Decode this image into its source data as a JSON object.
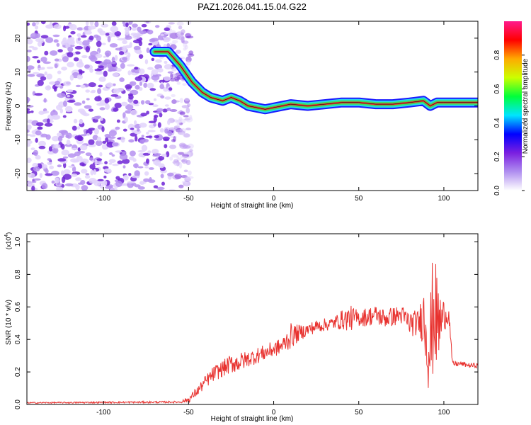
{
  "title": "PAZ1.2026.041.15.04.G22",
  "colors": {
    "snr_line": "#e8322f",
    "frame": "#000000",
    "track_core": "#e8322f",
    "track_mid": "#39e05a",
    "track_outer": "#27d8e8",
    "track_edge": "#1a1aff",
    "noise_dark": "#6f24d6",
    "noise_mid": "#b590f0",
    "noise_light": "#e2d4fb"
  },
  "chart_data": [
    {
      "type": "heatmap",
      "name": "spectrogram",
      "xlabel": "Height of straight line (km)",
      "ylabel": "Frequency (Hz)",
      "xlim": [
        -145,
        120
      ],
      "ylim": [
        -25,
        25
      ],
      "x_ticks": [
        -100,
        -50,
        0,
        50,
        100
      ],
      "x_tick_labels": [
        "-100",
        "-50",
        "0",
        "50",
        "100"
      ],
      "y_ticks": [
        -20,
        -10,
        0,
        10,
        20
      ],
      "y_tick_labels": [
        "-20",
        "-10",
        "0",
        "10",
        "20"
      ],
      "noise_region_x": [
        -145,
        -50
      ],
      "ridge": {
        "x": [
          -70,
          -62,
          -55,
          -48,
          -42,
          -37,
          -30,
          -25,
          -20,
          -15,
          -10,
          -5,
          0,
          5,
          10,
          20,
          30,
          40,
          50,
          60,
          70,
          80,
          88,
          92,
          96,
          100,
          110,
          120
        ],
        "freq": [
          16,
          16,
          12,
          7,
          4,
          2.5,
          1.5,
          2.5,
          1.5,
          0,
          -0.5,
          -1,
          -0.5,
          0,
          0.5,
          0,
          0.5,
          1,
          1,
          0.5,
          0.5,
          1,
          1.5,
          0,
          1,
          1,
          1,
          1
        ]
      },
      "colorbar": {
        "label": "Normalized spectral amplitude",
        "range": [
          0,
          1
        ],
        "ticks": [
          0.0,
          0.2,
          0.4,
          0.6,
          0.8
        ],
        "tick_labels": [
          "0.0",
          "0.2",
          "0.4",
          "0.6",
          "0.8"
        ],
        "stops": [
          "#ffffff",
          "#b08ff0",
          "#7b1fe0",
          "#0000ff",
          "#00e5ff",
          "#00ff3a",
          "#ccff00",
          "#ffaa00",
          "#ff0000",
          "#ff1a8c"
        ]
      }
    },
    {
      "type": "line",
      "name": "snr",
      "xlabel": "Height of straight line (km)",
      "ylabel": "SNR (10 * v/v)",
      "y_multiplier": "(x10",
      "y_multiplier_exp": "4",
      "y_multiplier_close": ")",
      "xlim": [
        -145,
        120
      ],
      "ylim": [
        0,
        1.05
      ],
      "x_ticks": [
        -100,
        -50,
        0,
        50,
        100
      ],
      "x_tick_labels": [
        "-100",
        "-50",
        "0",
        "50",
        "100"
      ],
      "y_ticks": [
        0.0,
        0.2,
        0.4,
        0.6,
        0.8,
        1.0
      ],
      "y_tick_labels": [
        "0.0",
        "0.2",
        "0.4",
        "0.6",
        "0.8",
        "1.0"
      ],
      "envelope": {
        "x": [
          -145,
          -55,
          -50,
          -45,
          -40,
          -35,
          -30,
          -25,
          -20,
          -15,
          -10,
          -5,
          0,
          5,
          10,
          15,
          20,
          25,
          30,
          35,
          40,
          45,
          50,
          55,
          60,
          65,
          70,
          75,
          80,
          85,
          88,
          90,
          92,
          94,
          96,
          98,
          100,
          103,
          105,
          110,
          115,
          120
        ],
        "mean": [
          0.01,
          0.015,
          0.03,
          0.08,
          0.14,
          0.19,
          0.22,
          0.25,
          0.26,
          0.28,
          0.3,
          0.32,
          0.34,
          0.36,
          0.42,
          0.44,
          0.46,
          0.48,
          0.49,
          0.5,
          0.52,
          0.53,
          0.53,
          0.54,
          0.55,
          0.53,
          0.54,
          0.55,
          0.5,
          0.5,
          0.55,
          0.45,
          0.35,
          0.6,
          0.5,
          0.5,
          0.55,
          0.55,
          0.25,
          0.25,
          0.24,
          0.24
        ],
        "jitter": [
          0.004,
          0.006,
          0.02,
          0.03,
          0.04,
          0.05,
          0.05,
          0.06,
          0.06,
          0.05,
          0.05,
          0.05,
          0.05,
          0.05,
          0.08,
          0.05,
          0.04,
          0.04,
          0.04,
          0.04,
          0.06,
          0.08,
          0.05,
          0.06,
          0.06,
          0.06,
          0.06,
          0.06,
          0.08,
          0.08,
          0.18,
          0.3,
          0.35,
          0.4,
          0.3,
          0.2,
          0.1,
          0.05,
          0.02,
          0.015,
          0.015,
          0.015
        ]
      },
      "series_color": "#e8322f"
    }
  ]
}
